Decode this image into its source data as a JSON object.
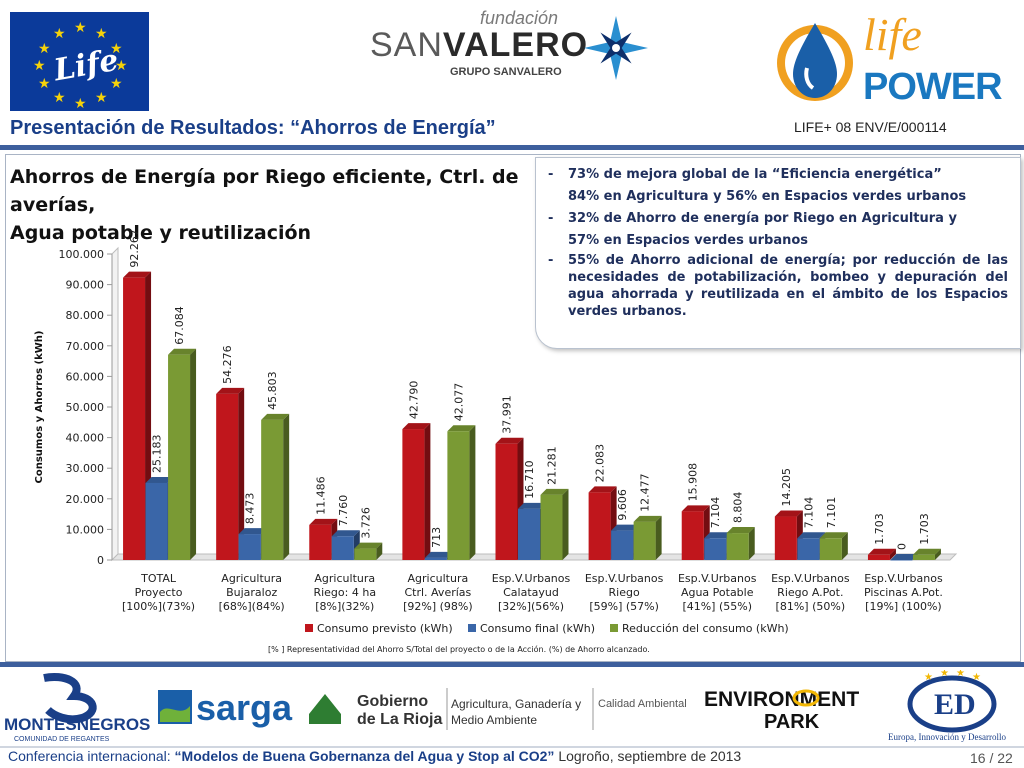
{
  "header": {
    "eu_logo_text": "Life",
    "fundacion": "fundación",
    "san": "SAN",
    "valero": "VALERO",
    "grupo": "GRUPO SANVALERO",
    "lp_life": "life",
    "lp_power": "POWER",
    "title": "Presentación de Resultados: “Ahorros de Energía”",
    "project_code": "LIFE+ 08 ENV/E/000114"
  },
  "chart_heading_line1": "Ahorros de Energía por Riego eficiente, Ctrl. de averías,",
  "chart_heading_line2": "Agua potable y reutilización",
  "notes": [
    "73% de mejora global de la “Eficiencia energética”",
    "84% en Agricultura y 56% en Espacios verdes urbanos",
    "32% de Ahorro de energía por Riego en Agricultura y",
    "57% en Espacios verdes urbanos",
    "55% de Ahorro adicional de energía; por reducción de las necesidades de potabilización, bombeo y depuración del agua ahorrada y reutilizada en el ámbito de los Espacios verdes urbanos."
  ],
  "chart_data": {
    "type": "bar",
    "title": "",
    "ylabel": "Consumos y Ahorros (kWh)",
    "ylim": [
      0,
      100000
    ],
    "yticks": [
      "0",
      "10.000",
      "20.000",
      "30.000",
      "40.000",
      "50.000",
      "60.000",
      "70.000",
      "80.000",
      "90.000",
      "100.000"
    ],
    "categories": [
      [
        "TOTAL",
        "Proyecto",
        "[100%](73%)"
      ],
      [
        "Agricultura",
        "Bujaraloz",
        "[68%](84%)"
      ],
      [
        "Agricultura",
        "Riego: 4 ha",
        "[8%](32%)"
      ],
      [
        "Agricultura",
        "Ctrl. Averías",
        "[92%] (98%)"
      ],
      [
        "Esp.V.Urbanos",
        "Calatayud",
        "[32%](56%)"
      ],
      [
        "Esp.V.Urbanos",
        "Riego",
        "[59%] (57%)"
      ],
      [
        "Esp.V.Urbanos",
        "Agua Potable",
        "[41%] (55%)"
      ],
      [
        "Esp.V.Urbanos",
        "Riego A.Pot.",
        "[81%] (50%)"
      ],
      [
        "Esp.V.Urbanos",
        "Piscinas A.Pot.",
        "[19%] (100%)"
      ]
    ],
    "series": [
      {
        "name": "Consumo previsto (kWh)",
        "color": "#c0161c",
        "values": [
          92267,
          54276,
          11486,
          42790,
          37991,
          22083,
          15908,
          14205,
          1703
        ],
        "labels": [
          "92.267",
          "54.276",
          "11.486",
          "42.790",
          "37.991",
          "22.083",
          "15.908",
          "14.205",
          "1.703"
        ]
      },
      {
        "name": "Consumo final (kWh)",
        "color": "#3a66a8",
        "values": [
          25183,
          8473,
          7760,
          713,
          16710,
          9606,
          7104,
          7104,
          0
        ],
        "labels": [
          "25.183",
          "8.473",
          "7.760",
          "713",
          "16.710",
          "9.606",
          "7.104",
          "7.104",
          "0"
        ]
      },
      {
        "name": "Reducción del consumo (kWh)",
        "color": "#7a9a34",
        "values": [
          67084,
          45803,
          3726,
          42077,
          21281,
          12477,
          8804,
          7101,
          1703
        ],
        "labels": [
          "67.084",
          "45.803",
          "3.726",
          "42.077",
          "21.281",
          "12.477",
          "8.804",
          "7.101",
          "1.703"
        ]
      }
    ],
    "legend_position": "bottom",
    "grid": false,
    "footnote": "[% ] Representatividad del Ahorro S/Total del proyecto o de la Acción. (%) de Ahorro alcanzado."
  },
  "footer": {
    "montes_line1": "MONTESNEGROS",
    "montes_line2": "COMUNIDAD DE REGANTES",
    "sarga": "sarga",
    "gob_line1": "Gobierno",
    "gob_line2": "de La Rioja",
    "agri_line1": "Agricultura, Ganadería y",
    "agri_line2": "Medio Ambiente",
    "calidad": "Calidad Ambiental",
    "env_line1": "ENVIRONMENT",
    "env_line2": "PARK",
    "europa": "Europa, Innovación y Desarrollo",
    "conf_prefix": "Conferencia internacional:",
    "conf_quote": "“Modelos de Buena Gobernanza del Agua y Stop al CO2”",
    "conf_place": "Logroño, septiembre de 2013",
    "page": "16 / 22"
  }
}
